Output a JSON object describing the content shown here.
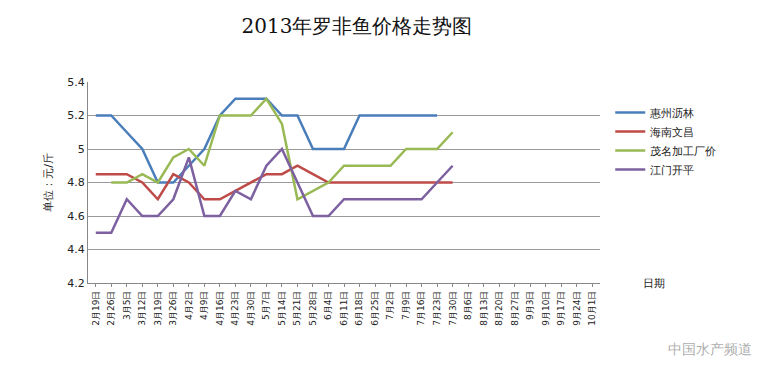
{
  "chart_data": {
    "type": "line",
    "title": "2013年罗非鱼价格走势图",
    "ylabel": "单位：元/斤",
    "xlabel": "日期",
    "watermark": "中国水产频道",
    "categories": [
      "2月19日",
      "2月26日",
      "3月5日",
      "3月12日",
      "3月19日",
      "3月26日",
      "4月2日",
      "4月9日",
      "4月16日",
      "4月23日",
      "4月30日",
      "5月7日",
      "5月14日",
      "5月21日",
      "5月28日",
      "6月4日",
      "6月11日",
      "6月18日",
      "6月25日",
      "7月2日",
      "7月9日",
      "7月16日",
      "7月23日",
      "7月30日",
      "8月6日",
      "8月13日",
      "8月20日",
      "8月27日",
      "9月3日",
      "9月10日",
      "9月17日",
      "9月24日",
      "10月1日"
    ],
    "series": [
      {
        "name": "惠州沥林",
        "color": "#4a7ebb",
        "values": [
          5.2,
          5.2,
          5.1,
          5.0,
          4.8,
          4.8,
          4.9,
          5.0,
          5.2,
          5.3,
          5.3,
          5.3,
          5.2,
          5.2,
          5.0,
          5.0,
          5.0,
          5.2,
          5.2,
          5.2,
          5.2,
          5.2,
          5.2,
          null,
          null,
          null,
          null,
          null,
          null,
          null,
          null,
          null,
          null
        ]
      },
      {
        "name": "海南文昌",
        "color": "#be4b48",
        "values": [
          4.85,
          4.85,
          4.85,
          4.8,
          4.7,
          4.85,
          4.8,
          4.7,
          4.7,
          4.75,
          4.8,
          4.85,
          4.85,
          4.9,
          4.85,
          4.8,
          4.8,
          4.8,
          4.8,
          4.8,
          4.8,
          4.8,
          4.8,
          4.8,
          null,
          null,
          null,
          null,
          null,
          null,
          null,
          null,
          null
        ]
      },
      {
        "name": "茂名加工厂价",
        "color": "#98b954",
        "values": [
          null,
          4.8,
          4.8,
          4.85,
          4.8,
          4.95,
          5.0,
          4.9,
          5.2,
          5.2,
          5.2,
          5.3,
          5.15,
          4.7,
          4.75,
          4.8,
          4.9,
          4.9,
          4.9,
          4.9,
          5.0,
          5.0,
          5.0,
          5.1,
          null,
          null,
          null,
          null,
          null,
          null,
          null,
          null,
          null
        ]
      },
      {
        "name": "江门开平",
        "color": "#7d60a0",
        "values": [
          4.5,
          4.5,
          4.7,
          4.6,
          4.6,
          4.7,
          4.95,
          4.6,
          4.6,
          4.75,
          4.7,
          4.9,
          5.0,
          4.8,
          4.6,
          4.6,
          4.7,
          4.7,
          4.7,
          4.7,
          4.7,
          4.7,
          4.8,
          4.9,
          null,
          null,
          null,
          null,
          null,
          null,
          null,
          null,
          null
        ]
      }
    ],
    "ylim": [
      4.2,
      5.4
    ],
    "yticks": [
      4.2,
      4.4,
      4.6,
      4.8,
      5,
      5.2,
      5.4
    ],
    "grid": true,
    "legend": "right"
  }
}
